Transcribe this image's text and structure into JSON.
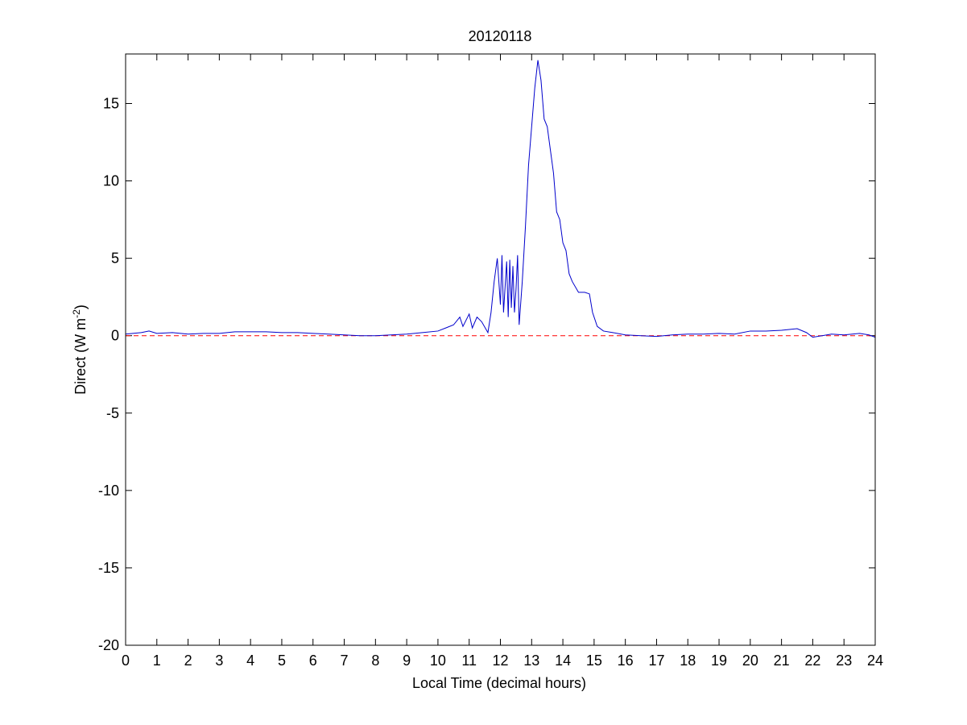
{
  "chart_data": {
    "type": "line",
    "title": "20120118",
    "xlabel": "Local Time (decimal hours)",
    "ylabel": [
      "Direct (W m",
      "-2",
      ")"
    ],
    "x": [
      0,
      0.5,
      0.75,
      1,
      1.5,
      2,
      2.5,
      3,
      3.5,
      4,
      4.5,
      5,
      5.5,
      6,
      6.5,
      7,
      7.5,
      8,
      8.5,
      9,
      9.5,
      10,
      10.25,
      10.5,
      10.7,
      10.8,
      11,
      11.1,
      11.25,
      11.4,
      11.6,
      11.7,
      11.8,
      11.9,
      12,
      12.05,
      12.1,
      12.2,
      12.25,
      12.3,
      12.35,
      12.4,
      12.45,
      12.5,
      12.55,
      12.6,
      12.7,
      12.8,
      12.9,
      13,
      13.1,
      13.2,
      13.3,
      13.4,
      13.5,
      13.6,
      13.7,
      13.8,
      13.9,
      14,
      14.1,
      14.2,
      14.3,
      14.5,
      14.7,
      14.85,
      14.95,
      15.1,
      15.3,
      15.6,
      16,
      16.5,
      17,
      17.5,
      18,
      18.5,
      19,
      19.5,
      20,
      20.5,
      21,
      21.5,
      21.8,
      22,
      22.3,
      22.6,
      23,
      23.5,
      23.8,
      24
    ],
    "series": [
      {
        "name": "Direct",
        "color": "#0000cc",
        "values": [
          0.1,
          0.2,
          0.3,
          0.15,
          0.2,
          0.1,
          0.15,
          0.15,
          0.25,
          0.25,
          0.25,
          0.2,
          0.2,
          0.15,
          0.1,
          0.05,
          0,
          0,
          0.05,
          0.1,
          0.2,
          0.3,
          0.5,
          0.7,
          1.2,
          0.6,
          1.4,
          0.5,
          1.2,
          0.9,
          0.2,
          1.5,
          3.5,
          5,
          2,
          5.2,
          1.5,
          4.8,
          1.2,
          4.9,
          1.8,
          4.5,
          1.5,
          3,
          5.2,
          0.7,
          3.5,
          7,
          11,
          13.5,
          16,
          17.8,
          16.5,
          14,
          13.5,
          12,
          10.5,
          8,
          7.5,
          6,
          5.5,
          4,
          3.5,
          2.8,
          2.8,
          2.7,
          1.5,
          0.6,
          0.3,
          0.2,
          0.05,
          0,
          -0.05,
          0.05,
          0.1,
          0.1,
          0.15,
          0.1,
          0.3,
          0.3,
          0.35,
          0.45,
          0.2,
          -0.1,
          0,
          0.1,
          0.05,
          0.15,
          0.05,
          -0.1
        ]
      }
    ],
    "reference_line": {
      "y": 0,
      "color": "#ff0000"
    },
    "xlim": [
      0,
      24
    ],
    "xticks": [
      0,
      1,
      2,
      3,
      4,
      5,
      6,
      7,
      8,
      9,
      10,
      11,
      12,
      13,
      14,
      15,
      16,
      17,
      18,
      19,
      20,
      21,
      22,
      23,
      24
    ],
    "ylim": [
      -20,
      18.2
    ],
    "yticks": [
      -20,
      -15,
      -10,
      -5,
      0,
      5,
      10,
      15
    ]
  }
}
